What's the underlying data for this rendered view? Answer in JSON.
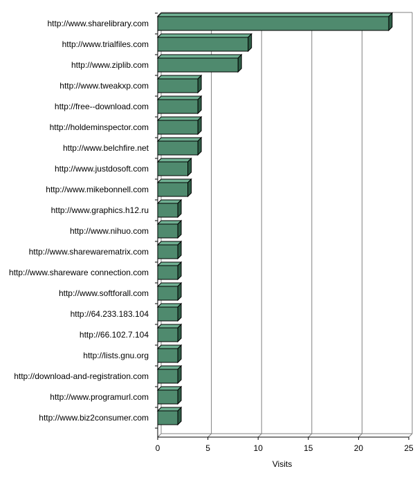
{
  "chart_data": {
    "type": "bar",
    "orientation": "horizontal",
    "categories": [
      "http://www.sharelibrary.com",
      "http://www.trialfiles.com",
      "http://www.ziplib.com",
      "http://www.tweakxp.com",
      "http://free--download.com",
      "http://holdeminspector.com",
      "http://www.belchfire.net",
      "http://www.justdosoft.com",
      "http://www.mikebonnell.com",
      "http://www.graphics.h12.ru",
      "http://www.nihuo.com",
      "http://www.sharewarematrix.com",
      "http://www.shareware connection.com",
      "http://www.softforall.com",
      "http://64.233.183.104",
      "http://66.102.7.104",
      "http://lists.gnu.org",
      "http://download-and-registration.com",
      "http://www.programurl.com",
      "http://www.biz2consumer.com"
    ],
    "values": [
      23,
      9,
      8,
      4,
      4,
      4,
      4,
      3,
      3,
      2,
      2,
      2,
      2,
      2,
      2,
      2,
      2,
      2,
      2,
      2
    ],
    "xlabel": "Visits",
    "xlim": [
      0,
      25
    ],
    "xticks": [
      0,
      5,
      10,
      15,
      20,
      25
    ],
    "grid": "vertical",
    "legend": "none",
    "colors": {
      "bar_front": "#4f8a6e",
      "bar_top": "#6fb092",
      "bar_side": "#2f5e47",
      "outline": "#000000",
      "grid": "#808080"
    }
  }
}
